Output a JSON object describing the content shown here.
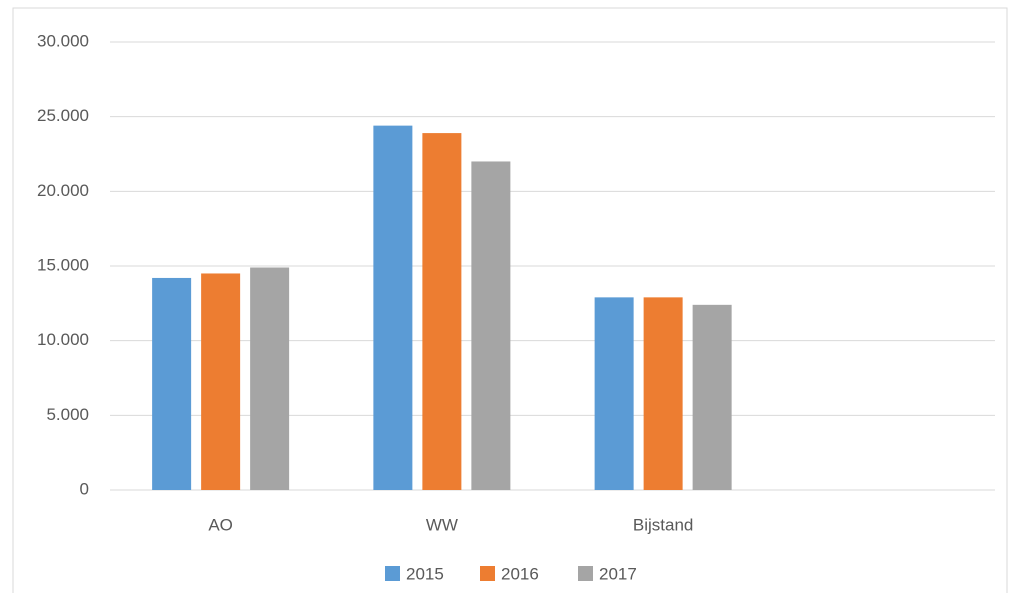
{
  "chart_data": {
    "type": "bar",
    "categories": [
      "AO",
      "WW",
      "Bijstand",
      null
    ],
    "series": [
      {
        "name": "2015",
        "color": "#5b9bd5",
        "values": [
          14200,
          24400,
          12900,
          null
        ]
      },
      {
        "name": "2016",
        "color": "#ed7d31",
        "values": [
          14500,
          23900,
          12900,
          null
        ]
      },
      {
        "name": "2017",
        "color": "#a5a5a5",
        "values": [
          14900,
          22000,
          12400,
          null
        ]
      }
    ],
    "ylim": [
      0,
      30000
    ],
    "yticks": [
      0,
      {
        "value": 5000,
        "label": "5.000"
      },
      {
        "value": 10000,
        "label": "10.000"
      },
      {
        "value": 15000,
        "label": "15.000"
      },
      {
        "value": 20000,
        "label": "20.000"
      },
      {
        "value": 25000,
        "label": "25.000"
      },
      {
        "value": 30000,
        "label": "30.000"
      }
    ],
    "grid": true,
    "legend": "bottom"
  }
}
